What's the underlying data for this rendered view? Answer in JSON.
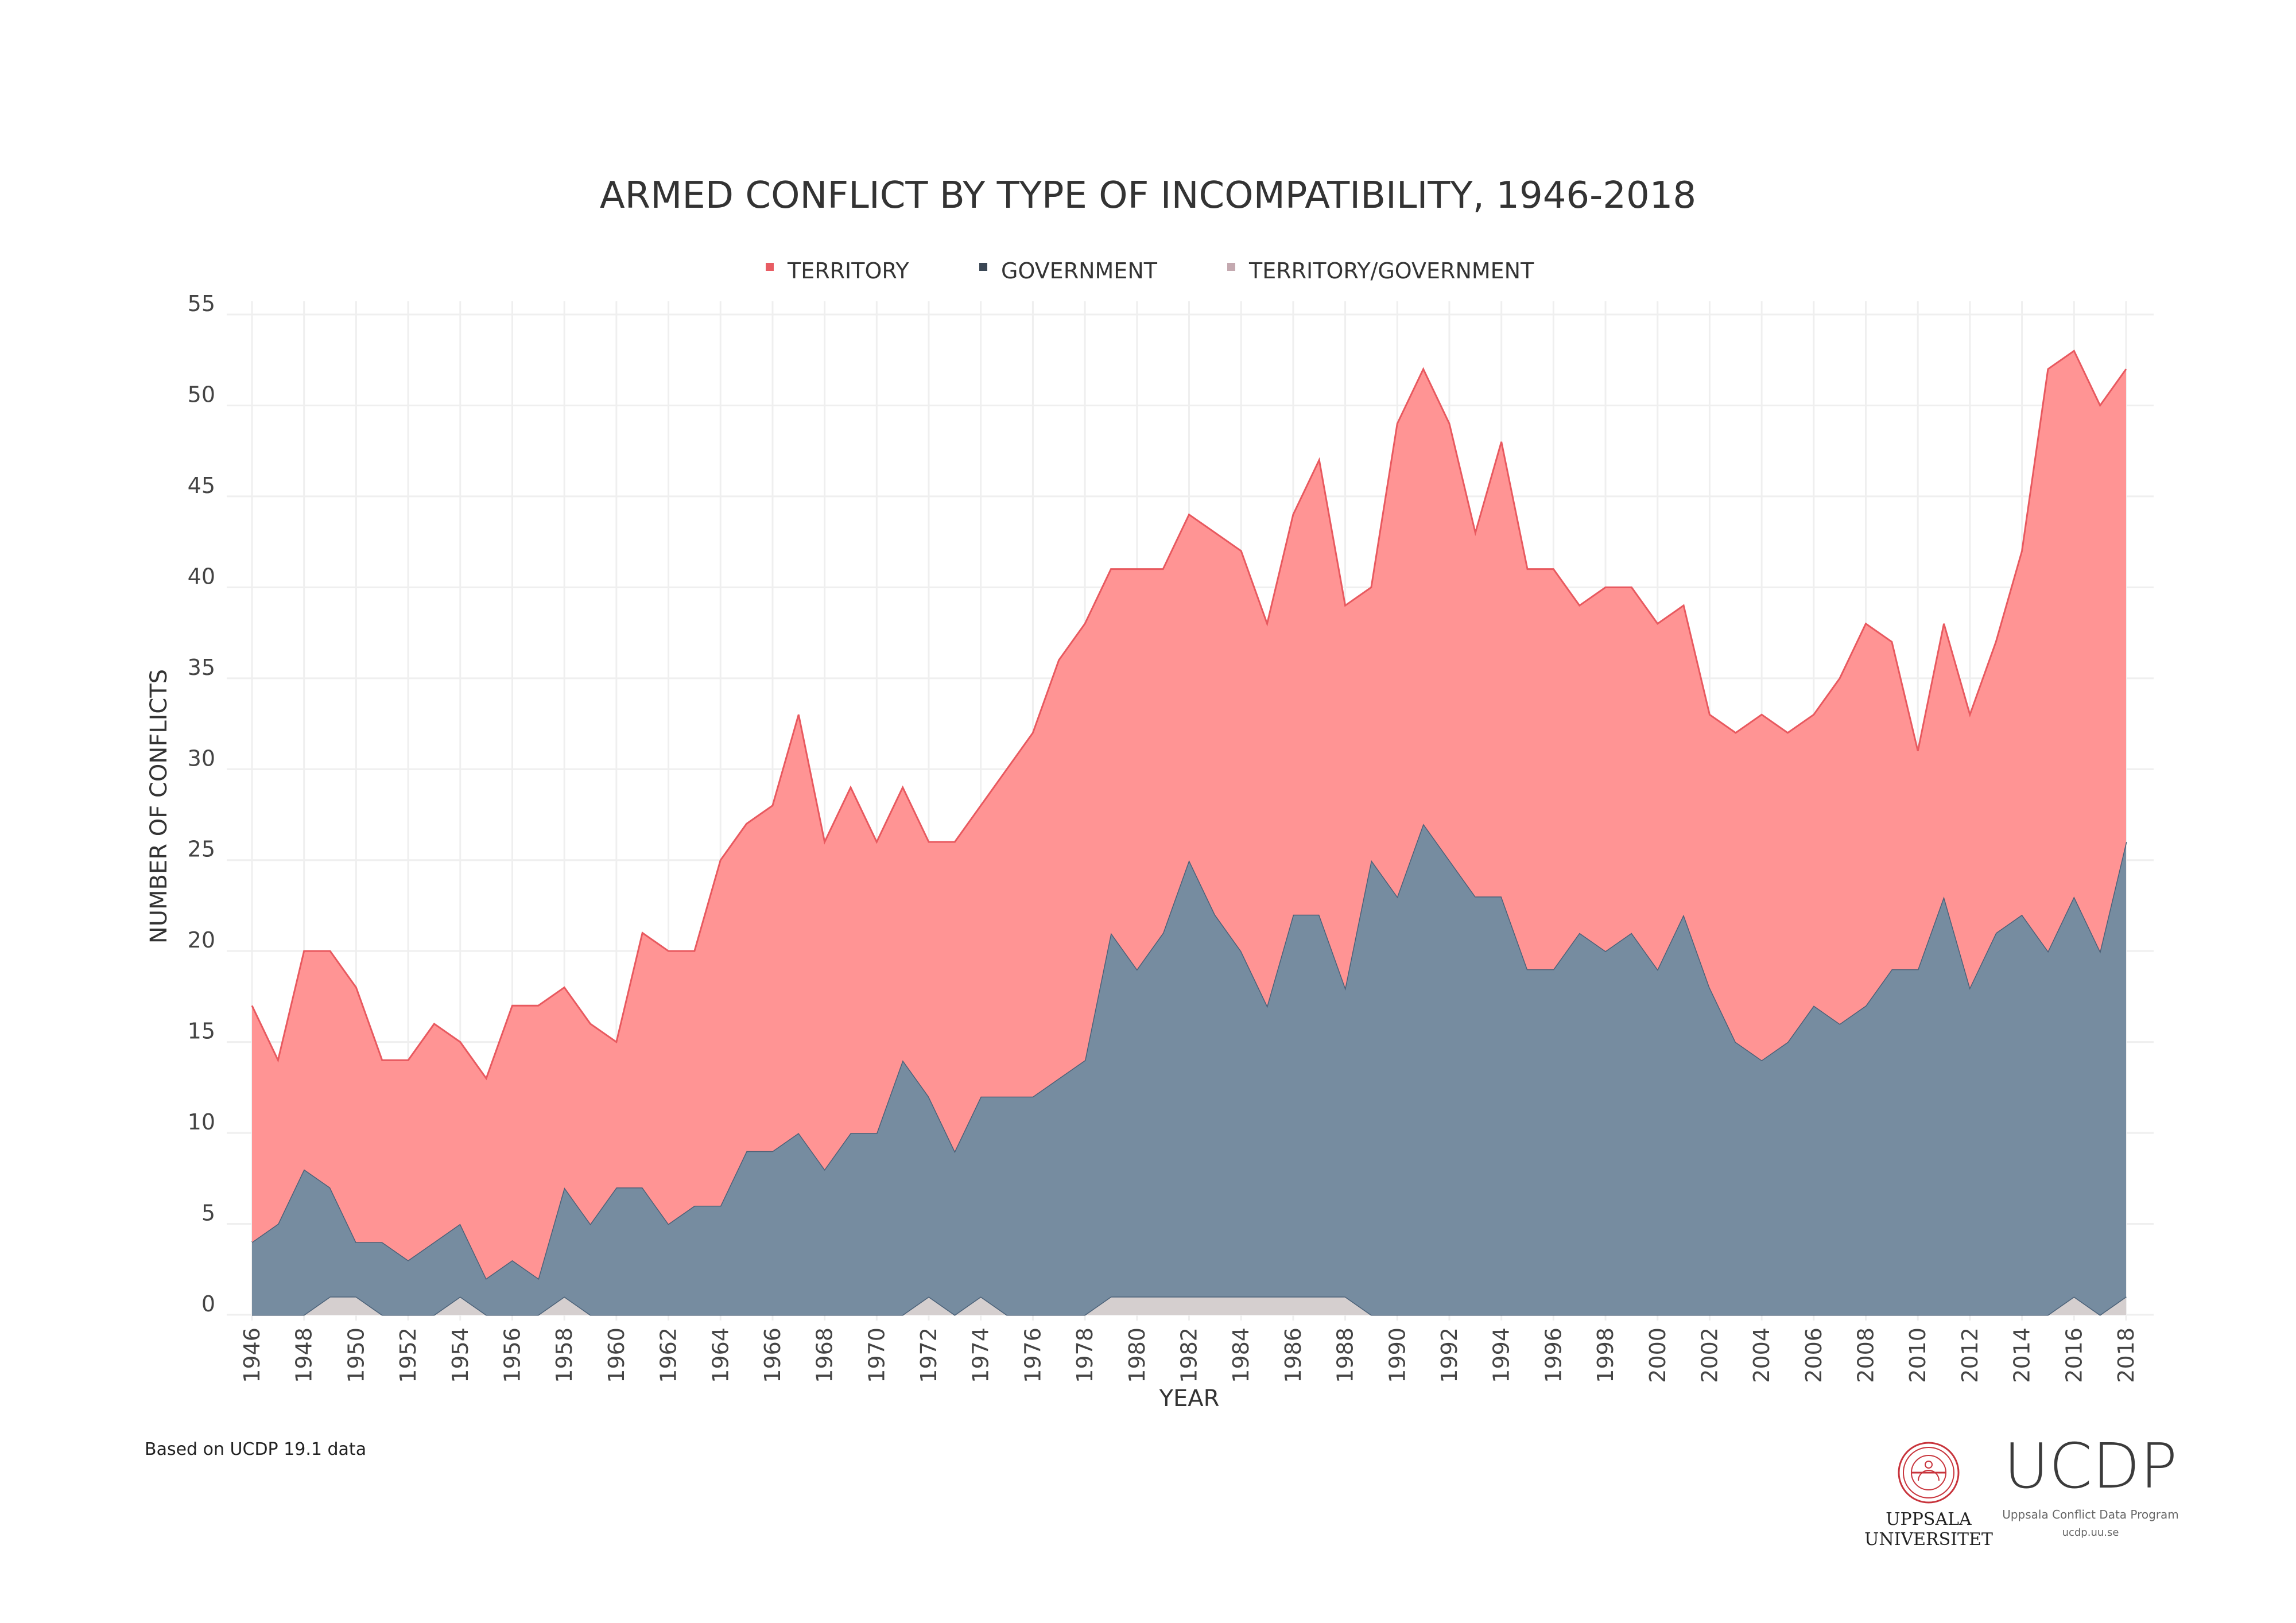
{
  "chart_data": {
    "type": "area",
    "stacked": true,
    "title": "ARMED CONFLICT BY TYPE OF INCOMPATIBILITY, 1946-2018",
    "xlabel": "YEAR",
    "ylabel": "NUMBER OF CONFLICTS",
    "ylim": [
      0,
      55
    ],
    "yticks": [
      0,
      5,
      10,
      15,
      20,
      25,
      30,
      35,
      40,
      45,
      50,
      55
    ],
    "xlim": [
      1946,
      2018
    ],
    "xtick_step": 2,
    "grid": true,
    "legend_position": "top",
    "x": [
      1946,
      1947,
      1948,
      1949,
      1950,
      1951,
      1952,
      1953,
      1954,
      1955,
      1956,
      1957,
      1958,
      1959,
      1960,
      1961,
      1962,
      1963,
      1964,
      1965,
      1966,
      1967,
      1968,
      1969,
      1970,
      1971,
      1972,
      1973,
      1974,
      1975,
      1976,
      1977,
      1978,
      1979,
      1980,
      1981,
      1982,
      1983,
      1984,
      1985,
      1986,
      1987,
      1988,
      1989,
      1990,
      1991,
      1992,
      1993,
      1994,
      1995,
      1996,
      1997,
      1998,
      1999,
      2000,
      2001,
      2002,
      2003,
      2004,
      2005,
      2006,
      2007,
      2008,
      2009,
      2010,
      2011,
      2012,
      2013,
      2014,
      2015,
      2016,
      2017,
      2018
    ],
    "series": [
      {
        "name": "TERRITORY",
        "color": "#ff9494",
        "stroke": "#e8595f",
        "legend_color": "#e85c63",
        "values": [
          13,
          9,
          12,
          13,
          14,
          10,
          11,
          12,
          10,
          11,
          14,
          15,
          11,
          11,
          8,
          14,
          15,
          14,
          19,
          18,
          19,
          23,
          18,
          19,
          16,
          15,
          14,
          17,
          16,
          18,
          20,
          23,
          24,
          20,
          22,
          20,
          19,
          21,
          22,
          21,
          22,
          25,
          21,
          15,
          26,
          25,
          24,
          20,
          25,
          22,
          22,
          18,
          20,
          19,
          19,
          17,
          15,
          17,
          19,
          17,
          16,
          19,
          21,
          18,
          12,
          15,
          15,
          16,
          20,
          32,
          30,
          30,
          26
        ]
      },
      {
        "name": "GOVERNMENT",
        "color": "#768ca0",
        "stroke": "#4b6178",
        "legend_color": "#3a4654",
        "values": [
          4,
          5,
          8,
          6,
          3,
          4,
          3,
          4,
          4,
          2,
          3,
          2,
          6,
          5,
          7,
          7,
          5,
          6,
          6,
          9,
          9,
          10,
          8,
          10,
          10,
          14,
          11,
          9,
          11,
          12,
          12,
          13,
          14,
          20,
          18,
          20,
          24,
          21,
          19,
          16,
          21,
          21,
          17,
          25,
          23,
          27,
          25,
          23,
          23,
          19,
          19,
          21,
          20,
          21,
          19,
          22,
          18,
          15,
          14,
          15,
          17,
          16,
          17,
          19,
          19,
          23,
          18,
          21,
          22,
          20,
          22,
          20,
          25
        ]
      },
      {
        "name": "TERRITORY/GOVERNMENT",
        "color": "#d5cfcf",
        "stroke": "#4b6178",
        "legend_color": "#c4a9b0",
        "values": [
          0,
          0,
          0,
          1,
          1,
          0,
          0,
          0,
          1,
          0,
          0,
          0,
          1,
          0,
          0,
          0,
          0,
          0,
          0,
          0,
          0,
          0,
          0,
          0,
          0,
          0,
          1,
          0,
          1,
          0,
          0,
          0,
          0,
          1,
          1,
          1,
          1,
          1,
          1,
          1,
          1,
          1,
          1,
          0,
          0,
          0,
          0,
          0,
          0,
          0,
          0,
          0,
          0,
          0,
          0,
          0,
          0,
          0,
          0,
          0,
          0,
          0,
          0,
          0,
          0,
          0,
          0,
          0,
          0,
          0,
          1,
          0,
          1
        ]
      }
    ]
  },
  "footnote": "Based on UCDP 19.1 data",
  "logos": {
    "university_line1": "UPPSALA",
    "university_line2": "UNIVERSITET",
    "seal_text": "SIGILLUM ACADEMIAE UPSALIENSIS · GRATIA · VERITAS · NATURA",
    "program_abbr": "UCDP",
    "program_name": "Uppsala Conflict Data Program",
    "program_url": "ucdp.uu.se"
  }
}
